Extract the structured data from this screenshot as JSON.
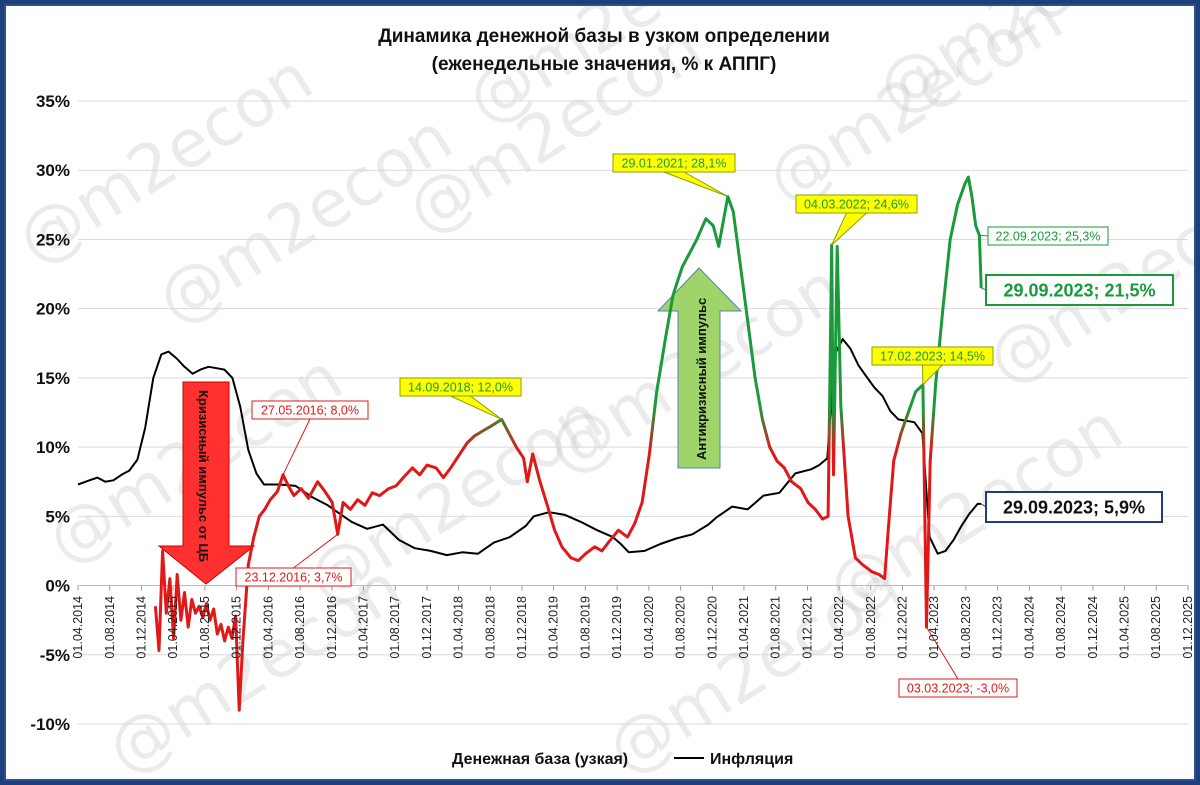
{
  "chart_data": {
    "type": "line",
    "title": "Динамика денежной базы в узком определении",
    "subtitle": "(еженедельные значения, % к АППГ)",
    "ylim": [
      -10,
      35
    ],
    "yticks": [
      "35%",
      "30%",
      "25%",
      "20%",
      "15%",
      "10%",
      "5%",
      "0%",
      "-5%",
      "-10%"
    ],
    "ytick_values": [
      35,
      30,
      25,
      20,
      15,
      10,
      5,
      0,
      -5,
      -10
    ],
    "xlim": [
      "2014-04-01",
      "2025-12-01"
    ],
    "xticks": [
      "01.04.2014",
      "01.08.2014",
      "01.12.2014",
      "01.04.2015",
      "01.08.2015",
      "01.12.2015",
      "01.04.2016",
      "01.08.2016",
      "01.12.2016",
      "01.04.2017",
      "01.08.2017",
      "01.12.2017",
      "01.04.2018",
      "01.08.2018",
      "01.12.2018",
      "01.04.2019",
      "01.08.2019",
      "01.12.2019",
      "01.04.2020",
      "01.08.2020",
      "01.12.2020",
      "01.04.2021",
      "01.08.2021",
      "01.12.2021",
      "01.04.2022",
      "01.08.2022",
      "01.12.2022",
      "01.04.2023",
      "01.08.2023",
      "01.12.2023",
      "01.04.2024",
      "01.08.2024",
      "01.12.2024",
      "01.04.2025",
      "01.08.2025",
      "01.12.2025"
    ],
    "grid": true,
    "legend_position": "bottom",
    "series": [
      {
        "name": "Денежная база (узкая)",
        "color": "gradient red-green",
        "points": [
          [
            "2015-01-23",
            -1.5
          ],
          [
            "2015-02-06",
            -4.7
          ],
          [
            "2015-02-20",
            2.5
          ],
          [
            "2015-03-06",
            -2
          ],
          [
            "2015-03-20",
            0.5
          ],
          [
            "2015-04-03",
            -3.8
          ],
          [
            "2015-04-17",
            0.8
          ],
          [
            "2015-05-01",
            -2.5
          ],
          [
            "2015-05-15",
            -0.5
          ],
          [
            "2015-05-29",
            -3
          ],
          [
            "2015-06-12",
            -1
          ],
          [
            "2015-06-26",
            -2
          ],
          [
            "2015-07-10",
            -1.5
          ],
          [
            "2015-07-24",
            -2.3
          ],
          [
            "2015-08-07",
            -1.3
          ],
          [
            "2015-08-21",
            -2.5
          ],
          [
            "2015-09-04",
            -1.7
          ],
          [
            "2015-09-18",
            -3.5
          ],
          [
            "2015-10-02",
            -2.8
          ],
          [
            "2015-10-16",
            -4
          ],
          [
            "2015-10-30",
            -3
          ],
          [
            "2015-11-13",
            -3.8
          ],
          [
            "2015-11-27",
            -2.2
          ],
          [
            "2015-12-11",
            -9
          ],
          [
            "2015-12-25",
            -4
          ],
          [
            "2016-01-15",
            1.5
          ],
          [
            "2016-02-05",
            3.5
          ],
          [
            "2016-02-26",
            5
          ],
          [
            "2016-03-18",
            5.5
          ],
          [
            "2016-04-08",
            6.2
          ],
          [
            "2016-05-06",
            6.8
          ],
          [
            "2016-05-27",
            8
          ],
          [
            "2016-06-17",
            7.2
          ],
          [
            "2016-07-08",
            6.5
          ],
          [
            "2016-08-05",
            7
          ],
          [
            "2016-09-02",
            6.3
          ],
          [
            "2016-10-07",
            7.5
          ],
          [
            "2016-11-04",
            6.8
          ],
          [
            "2016-12-02",
            6
          ],
          [
            "2016-12-23",
            3.7
          ],
          [
            "2017-01-13",
            6
          ],
          [
            "2017-02-10",
            5.5
          ],
          [
            "2017-03-10",
            6.2
          ],
          [
            "2017-04-07",
            5.8
          ],
          [
            "2017-05-05",
            6.7
          ],
          [
            "2017-06-02",
            6.5
          ],
          [
            "2017-07-07",
            7
          ],
          [
            "2017-08-04",
            7.2
          ],
          [
            "2017-09-01",
            7.8
          ],
          [
            "2017-10-06",
            8.5
          ],
          [
            "2017-11-03",
            8
          ],
          [
            "2017-12-01",
            8.7
          ],
          [
            "2018-01-05",
            8.5
          ],
          [
            "2018-02-02",
            7.8
          ],
          [
            "2018-03-02",
            8.5
          ],
          [
            "2018-04-06",
            9.5
          ],
          [
            "2018-05-04",
            10.3
          ],
          [
            "2018-06-01",
            10.8
          ],
          [
            "2018-07-06",
            11.2
          ],
          [
            "2018-08-03",
            11.5
          ],
          [
            "2018-09-14",
            12
          ],
          [
            "2018-10-12",
            11
          ],
          [
            "2018-11-09",
            10
          ],
          [
            "2018-12-07",
            9.2
          ],
          [
            "2018-12-21",
            7.5
          ],
          [
            "2019-01-11",
            9.5
          ],
          [
            "2019-02-08",
            7.5
          ],
          [
            "2019-03-08",
            5.8
          ],
          [
            "2019-04-05",
            4
          ],
          [
            "2019-05-03",
            2.8
          ],
          [
            "2019-06-07",
            2
          ],
          [
            "2019-07-05",
            1.8
          ],
          [
            "2019-08-02",
            2.3
          ],
          [
            "2019-09-06",
            2.8
          ],
          [
            "2019-10-04",
            2.5
          ],
          [
            "2019-11-01",
            3.2
          ],
          [
            "2019-12-06",
            4
          ],
          [
            "2020-01-10",
            3.5
          ],
          [
            "2020-02-07",
            4.5
          ],
          [
            "2020-03-06",
            6
          ],
          [
            "2020-04-03",
            9.5
          ],
          [
            "2020-05-01",
            14
          ],
          [
            "2020-06-05",
            18
          ],
          [
            "2020-07-03",
            21
          ],
          [
            "2020-08-07",
            23
          ],
          [
            "2020-09-04",
            24
          ],
          [
            "2020-10-02",
            25
          ],
          [
            "2020-11-06",
            26.5
          ],
          [
            "2020-12-04",
            26
          ],
          [
            "2020-12-25",
            24.5
          ],
          [
            "2021-01-29",
            28.1
          ],
          [
            "2021-02-19",
            27
          ],
          [
            "2021-03-19",
            23
          ],
          [
            "2021-04-16",
            19
          ],
          [
            "2021-05-14",
            15
          ],
          [
            "2021-06-11",
            12
          ],
          [
            "2021-07-09",
            10
          ],
          [
            "2021-08-06",
            9
          ],
          [
            "2021-09-03",
            8.5
          ],
          [
            "2021-10-01",
            7.5
          ],
          [
            "2021-11-05",
            7
          ],
          [
            "2021-12-03",
            6
          ],
          [
            "2021-12-31",
            5.5
          ],
          [
            "2022-01-28",
            4.8
          ],
          [
            "2022-02-18",
            5
          ],
          [
            "2022-03-04",
            24.6
          ],
          [
            "2022-03-11",
            8
          ],
          [
            "2022-03-25",
            24.5
          ],
          [
            "2022-04-08",
            13
          ],
          [
            "2022-05-06",
            5
          ],
          [
            "2022-06-03",
            2
          ],
          [
            "2022-07-01",
            1.5
          ],
          [
            "2022-08-05",
            1
          ],
          [
            "2022-09-02",
            0.8
          ],
          [
            "2022-09-23",
            0.5
          ],
          [
            "2022-10-07",
            4
          ],
          [
            "2022-10-28",
            9
          ],
          [
            "2022-11-25",
            11
          ],
          [
            "2022-12-23",
            12.5
          ],
          [
            "2023-01-20",
            14
          ],
          [
            "2023-02-17",
            14.5
          ],
          [
            "2023-03-03",
            -3
          ],
          [
            "2023-03-17",
            9
          ],
          [
            "2023-04-07",
            14.5
          ],
          [
            "2023-05-05",
            20
          ],
          [
            "2023-06-02",
            25
          ],
          [
            "2023-06-30",
            27.5
          ],
          [
            "2023-07-28",
            29
          ],
          [
            "2023-08-11",
            29.5
          ],
          [
            "2023-08-25",
            28
          ],
          [
            "2023-09-08",
            26
          ],
          [
            "2023-09-22",
            25.3
          ],
          [
            "2023-09-29",
            21.5
          ]
        ]
      },
      {
        "name": "Инфляция",
        "color": "#000000",
        "points": [
          [
            "2014-04-01",
            7.3
          ],
          [
            "2014-05-15",
            7.6
          ],
          [
            "2014-06-15",
            7.8
          ],
          [
            "2014-07-15",
            7.5
          ],
          [
            "2014-08-15",
            7.6
          ],
          [
            "2014-09-15",
            8
          ],
          [
            "2014-10-15",
            8.3
          ],
          [
            "2014-11-15",
            9.1
          ],
          [
            "2014-12-15",
            11.4
          ],
          [
            "2015-01-15",
            15
          ],
          [
            "2015-02-15",
            16.7
          ],
          [
            "2015-03-15",
            16.9
          ],
          [
            "2015-04-15",
            16.4
          ],
          [
            "2015-05-15",
            15.8
          ],
          [
            "2015-06-15",
            15.3
          ],
          [
            "2015-07-15",
            15.6
          ],
          [
            "2015-08-15",
            15.8
          ],
          [
            "2015-09-15",
            15.7
          ],
          [
            "2015-10-15",
            15.6
          ],
          [
            "2015-11-15",
            15
          ],
          [
            "2015-12-15",
            12.9
          ],
          [
            "2016-01-15",
            9.8
          ],
          [
            "2016-02-15",
            8.1
          ],
          [
            "2016-03-15",
            7.3
          ],
          [
            "2016-05-15",
            7.3
          ],
          [
            "2016-07-15",
            7.2
          ],
          [
            "2016-09-15",
            6.4
          ],
          [
            "2016-11-15",
            5.8
          ],
          [
            "2016-12-15",
            5.4
          ],
          [
            "2017-02-15",
            4.6
          ],
          [
            "2017-04-15",
            4.1
          ],
          [
            "2017-06-15",
            4.4
          ],
          [
            "2017-08-15",
            3.3
          ],
          [
            "2017-10-15",
            2.7
          ],
          [
            "2017-12-15",
            2.5
          ],
          [
            "2018-02-15",
            2.2
          ],
          [
            "2018-04-15",
            2.4
          ],
          [
            "2018-06-15",
            2.3
          ],
          [
            "2018-08-15",
            3.1
          ],
          [
            "2018-10-15",
            3.5
          ],
          [
            "2018-12-15",
            4.3
          ],
          [
            "2019-01-15",
            5
          ],
          [
            "2019-03-15",
            5.3
          ],
          [
            "2019-05-15",
            5.1
          ],
          [
            "2019-07-15",
            4.6
          ],
          [
            "2019-09-15",
            4
          ],
          [
            "2019-11-15",
            3.5
          ],
          [
            "2019-12-15",
            3
          ],
          [
            "2020-01-15",
            2.4
          ],
          [
            "2020-03-15",
            2.5
          ],
          [
            "2020-05-15",
            3
          ],
          [
            "2020-07-15",
            3.4
          ],
          [
            "2020-09-15",
            3.7
          ],
          [
            "2020-11-15",
            4.4
          ],
          [
            "2020-12-15",
            4.9
          ],
          [
            "2021-02-15",
            5.7
          ],
          [
            "2021-04-15",
            5.5
          ],
          [
            "2021-06-15",
            6.5
          ],
          [
            "2021-08-15",
            6.7
          ],
          [
            "2021-10-15",
            8.1
          ],
          [
            "2021-12-15",
            8.4
          ],
          [
            "2022-01-15",
            8.7
          ],
          [
            "2022-02-15",
            9.2
          ],
          [
            "2022-03-15",
            16.7
          ],
          [
            "2022-04-15",
            17.8
          ],
          [
            "2022-05-15",
            17.1
          ],
          [
            "2022-06-15",
            15.9
          ],
          [
            "2022-07-15",
            15.1
          ],
          [
            "2022-08-15",
            14.3
          ],
          [
            "2022-09-15",
            13.7
          ],
          [
            "2022-10-15",
            12.6
          ],
          [
            "2022-11-15",
            12
          ],
          [
            "2022-12-15",
            11.9
          ],
          [
            "2023-01-15",
            11.8
          ],
          [
            "2023-02-15",
            11
          ],
          [
            "2023-03-15",
            3.5
          ],
          [
            "2023-04-15",
            2.3
          ],
          [
            "2023-05-15",
            2.5
          ],
          [
            "2023-06-15",
            3.3
          ],
          [
            "2023-07-15",
            4.3
          ],
          [
            "2023-08-15",
            5.2
          ],
          [
            "2023-09-15",
            5.9
          ],
          [
            "2023-09-29",
            5.9
          ]
        ]
      }
    ],
    "annotations": [
      {
        "text": "27.05.2016; 8,0%",
        "color": "#e01818",
        "style": "red"
      },
      {
        "text": "23.12.2016; 3,7%",
        "color": "#e01818",
        "style": "red"
      },
      {
        "text": "14.09.2018; 12,0%",
        "color": "#1a9a3a",
        "style": "yellow"
      },
      {
        "text": "29.01.2021; 28,1%",
        "color": "#1a9a3a",
        "style": "yellow"
      },
      {
        "text": "04.03.2022; 24,6%",
        "color": "#1a9a3a",
        "style": "yellow"
      },
      {
        "text": "17.02.2023; 14,5%",
        "color": "#1a9a3a",
        "style": "yellow"
      },
      {
        "text": "22.09.2023; 25,3%",
        "color": "#1a9a3a",
        "style": "green"
      },
      {
        "text": "03.03.2023; -3,0%",
        "color": "#e01818",
        "style": "red"
      },
      {
        "text": "29.09.2023; 21,5%",
        "color": "#1a9a3a",
        "style": "green-big"
      },
      {
        "text": "29.09.2023; 5,9%",
        "color": "#111111",
        "style": "black-big"
      }
    ],
    "arrows": [
      {
        "text": "Кризисный импульс от ЦБ",
        "color": "#ff3030"
      },
      {
        "text": "Антикризисный импульс",
        "color": "#9fd46a"
      }
    ]
  },
  "watermark": "@m2econ",
  "colors": {
    "red": "#e01818",
    "green": "#1a9a3a",
    "frame": "#1f3f7a",
    "grid": "#d9d9d9",
    "callout_bg": "#ffff00"
  }
}
